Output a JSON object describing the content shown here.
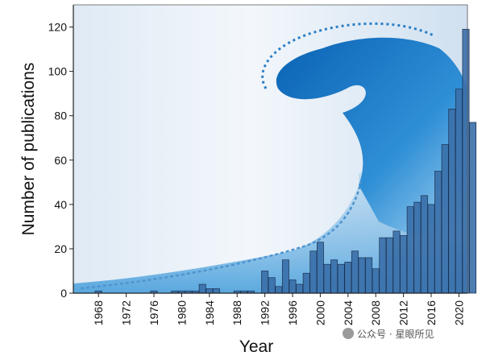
{
  "chart_data": {
    "type": "bar",
    "xlabel": "Year",
    "ylabel": "Number of publications",
    "ylim": [
      0,
      130
    ],
    "yticks": [
      0,
      20,
      40,
      60,
      80,
      100,
      120
    ],
    "x_tick_labels": [
      "1968",
      "1972",
      "1976",
      "1980",
      "1984",
      "1988",
      "1992",
      "1996",
      "2000",
      "2004",
      "2008",
      "2012",
      "2016",
      "2020"
    ],
    "years": [
      1966,
      1967,
      1968,
      1969,
      1970,
      1971,
      1972,
      1973,
      1974,
      1975,
      1976,
      1977,
      1978,
      1979,
      1980,
      1981,
      1982,
      1983,
      1984,
      1985,
      1986,
      1987,
      1988,
      1989,
      1990,
      1991,
      1992,
      1993,
      1994,
      1995,
      1996,
      1997,
      1998,
      1999,
      2000,
      2001,
      2002,
      2003,
      2004,
      2005,
      2006,
      2007,
      2008,
      2009,
      2010,
      2011,
      2012,
      2013,
      2014,
      2015,
      2016,
      2017,
      2018,
      2019,
      2020,
      2021,
      2022
    ],
    "values": [
      0,
      0,
      1,
      0,
      0,
      0,
      0,
      0,
      0,
      0,
      1,
      0,
      0,
      1,
      1,
      1,
      1,
      4,
      2,
      2,
      0,
      0,
      1,
      1,
      1,
      0,
      10,
      7,
      3,
      15,
      6,
      4,
      9,
      19,
      23,
      13,
      15,
      13,
      14,
      19,
      16,
      16,
      11,
      25,
      25,
      28,
      26,
      39,
      41,
      44,
      40,
      55,
      67,
      83,
      92,
      119,
      77
    ],
    "bar_color": "#3a6fa8",
    "bar_edge": "#1a3050",
    "grid": false,
    "legend": "none"
  },
  "watermark": {
    "text": "公众号 · 星眼所见",
    "icon": "wechat-icon"
  }
}
